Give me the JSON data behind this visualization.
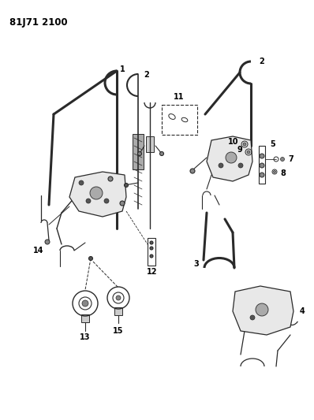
{
  "title_code": "81J71 2100",
  "bg": "#ffffff",
  "lc": "#2a2a2a",
  "tc": "#000000",
  "fig_w": 3.98,
  "fig_h": 5.33,
  "dpi": 100,
  "xmax": 398,
  "ymax": 533
}
